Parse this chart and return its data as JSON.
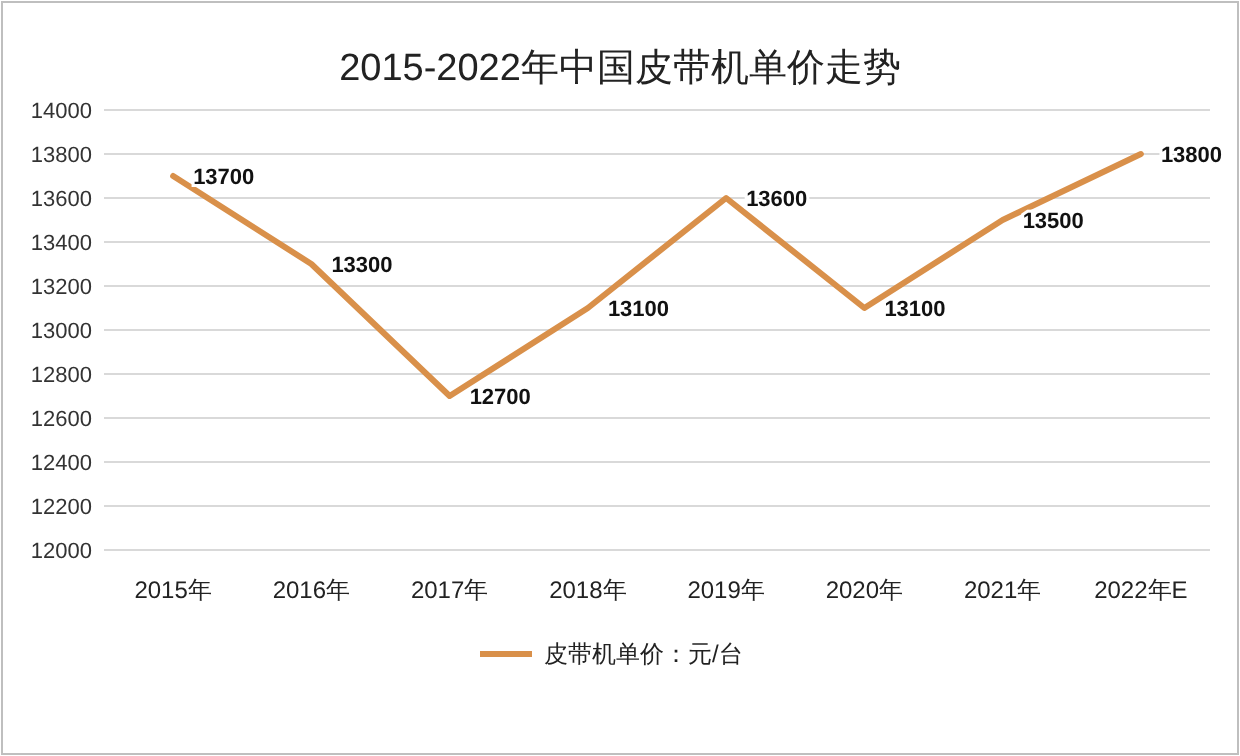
{
  "chart_data": {
    "type": "line",
    "title": "2015-2022年中国皮带机单价走势",
    "categories": [
      "2015年",
      "2016年",
      "2017年",
      "2018年",
      "2019年",
      "2020年",
      "2021年",
      "2022年E"
    ],
    "series": [
      {
        "name": "皮带机单价：元/台",
        "color": "#d9904a",
        "values": [
          13700,
          13300,
          12700,
          13100,
          13600,
          13100,
          13500,
          13800
        ]
      }
    ],
    "ylim": [
      12000,
      14000
    ],
    "yticks": [
      12000,
      12200,
      12400,
      12600,
      12800,
      13000,
      13200,
      13400,
      13600,
      13800,
      14000
    ],
    "grid": "y",
    "legend": "bottom",
    "data_labels": true
  }
}
